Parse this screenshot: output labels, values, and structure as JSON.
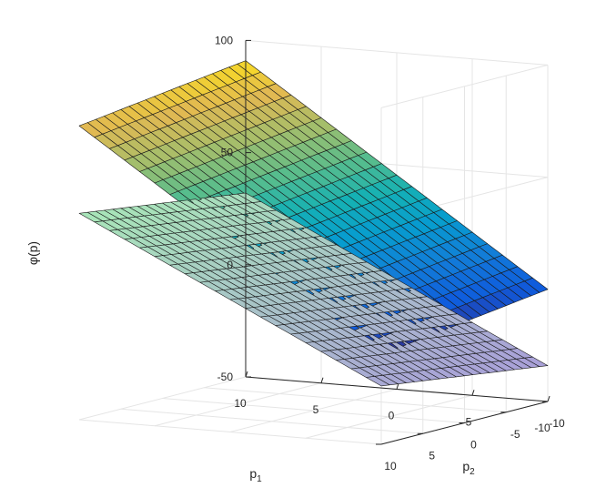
{
  "chart_data": {
    "type": "surface",
    "title": "",
    "xlabel": {
      "main": "p",
      "sub": "1"
    },
    "ylabel": {
      "main": "p",
      "sub": "2"
    },
    "zlabel": "φ(p)",
    "xlim": [
      -10,
      10
    ],
    "ylim": [
      -10,
      10
    ],
    "zlim": [
      -50,
      100
    ],
    "x_ticks": [
      "10",
      "5",
      "0",
      "-5",
      "-10"
    ],
    "x_tick_values": [
      10,
      5,
      0,
      -5,
      -10
    ],
    "y_ticks": [
      "10",
      "5",
      "0",
      "-5",
      "-10"
    ],
    "y_tick_values": [
      10,
      5,
      0,
      -5,
      -10
    ],
    "z_ticks": [
      "100",
      "50",
      "0",
      "-50"
    ],
    "z_tick_values": [
      100,
      50,
      0,
      -50
    ],
    "grid": true,
    "colormap": "parula",
    "mesh": {
      "p1_steps": 20,
      "p2_steps": 20
    },
    "series": [
      {
        "surface": "linear plane",
        "corner_values": {
          "p1=10,p2=10": 42,
          "p1=-10,p2=10": -24,
          "p1=-10,p2=-10": -34,
          "p1=10,p2=-10": 32
        },
        "colors": {
          "low": "#a99fd9",
          "high": "#a8e6b8"
        }
      },
      {
        "surface": "bent upper surface",
        "corner_values": {
          "p1=10,p2=10": 81,
          "p1=-10,p2=10": -10,
          "p1=-10,p2=-10": 0,
          "p1=10,p2=-10": 91
        },
        "colormap_range": [
          -10,
          91
        ]
      }
    ]
  }
}
